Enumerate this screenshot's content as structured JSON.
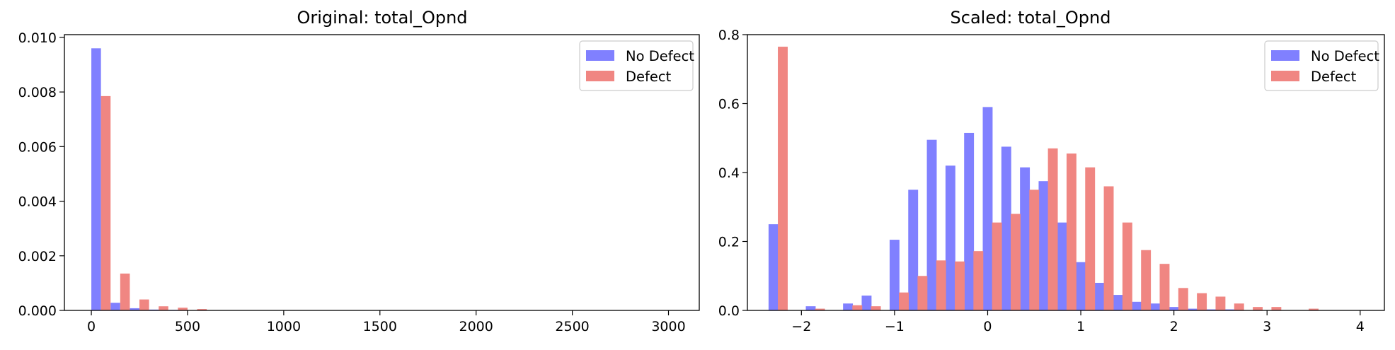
{
  "chart_data": [
    {
      "type": "bar",
      "title": "Original: total_Opnd",
      "xlabel": "",
      "ylabel": "",
      "xlim": [
        -140,
        3160
      ],
      "ylim": [
        0,
        0.0101
      ],
      "x_ticks": [
        0,
        500,
        1000,
        1500,
        2000,
        2500,
        3000
      ],
      "x_tick_labels": [
        "0",
        "500",
        "1000",
        "1500",
        "2000",
        "2500",
        "3000"
      ],
      "y_ticks": [
        0,
        0.002,
        0.004,
        0.006,
        0.008,
        0.01
      ],
      "y_tick_labels": [
        "0.000",
        "0.002",
        "0.004",
        "0.006",
        "0.008",
        "0.010"
      ],
      "bin_width": 50,
      "legend_position": "top-right",
      "grid": false,
      "series": [
        {
          "name": "No Defect",
          "color": "#8080ff",
          "x": [
            25,
            125,
            225,
            325,
            425,
            525
          ],
          "values": [
            0.0096,
            0.00028,
            8e-05,
            3e-05,
            2e-05,
            1e-05
          ]
        },
        {
          "name": "Defect",
          "color": "#f08682",
          "x": [
            75,
            175,
            275,
            375,
            475,
            575
          ],
          "values": [
            0.00785,
            0.00135,
            0.0004,
            0.00015,
            0.0001,
            5e-05
          ]
        }
      ]
    },
    {
      "type": "bar",
      "title": "Scaled: total_Opnd",
      "xlabel": "",
      "ylabel": "",
      "xlim": [
        -2.58,
        4.26
      ],
      "ylim": [
        0,
        0.8
      ],
      "x_ticks": [
        -2,
        -1,
        0,
        1,
        2,
        3,
        4
      ],
      "x_tick_labels": [
        "−2",
        "−1",
        "0",
        "1",
        "2",
        "3",
        "4"
      ],
      "y_ticks": [
        0,
        0.2,
        0.4,
        0.6,
        0.8
      ],
      "y_tick_labels": [
        "0.0",
        "0.2",
        "0.4",
        "0.6",
        "0.8"
      ],
      "bin_width": 0.1057,
      "legend_position": "top-right",
      "grid": false,
      "series": [
        {
          "name": "No Defect",
          "color": "#8080ff",
          "x": [
            -2.3,
            -1.9,
            -1.5,
            -1.3,
            -1.0,
            -0.8,
            -0.6,
            -0.4,
            -0.2,
            0.0,
            0.2,
            0.4,
            0.6,
            0.8,
            1.0,
            1.2,
            1.4,
            1.6,
            1.8,
            2.0,
            2.2,
            2.4,
            2.6
          ],
          "values": [
            0.25,
            0.012,
            0.02,
            0.043,
            0.205,
            0.35,
            0.495,
            0.42,
            0.515,
            0.59,
            0.475,
            0.415,
            0.375,
            0.255,
            0.14,
            0.08,
            0.045,
            0.025,
            0.02,
            0.01,
            0.005,
            0.003,
            0.003
          ]
        },
        {
          "name": "Defect",
          "color": "#f08682",
          "x": [
            -2.2,
            -1.8,
            -1.4,
            -1.2,
            -0.9,
            -0.7,
            -0.5,
            -0.3,
            -0.1,
            0.1,
            0.3,
            0.5,
            0.7,
            0.9,
            1.1,
            1.3,
            1.5,
            1.7,
            1.9,
            2.1,
            2.3,
            2.5,
            2.7,
            2.9,
            3.1,
            3.5
          ],
          "values": [
            0.765,
            0.005,
            0.015,
            0.012,
            0.052,
            0.1,
            0.145,
            0.142,
            0.172,
            0.255,
            0.28,
            0.35,
            0.47,
            0.455,
            0.415,
            0.36,
            0.255,
            0.175,
            0.135,
            0.065,
            0.05,
            0.04,
            0.02,
            0.01,
            0.01,
            0.005
          ]
        }
      ]
    }
  ]
}
